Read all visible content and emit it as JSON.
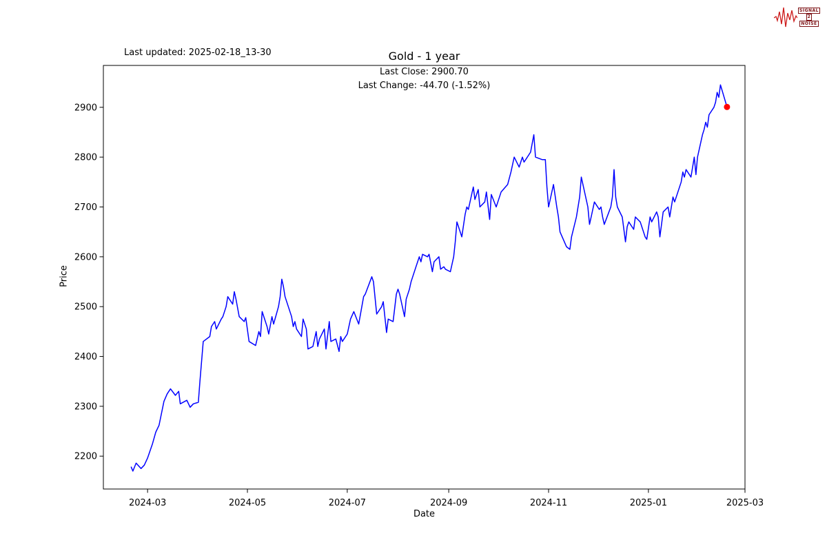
{
  "header": {
    "last_updated": "Last updated: 2025-02-18_13-30"
  },
  "logo": {
    "line1": "SIGNAL",
    "line2": "2",
    "line3": "NOISE",
    "waveform_color": "#cc1a1a",
    "text_color": "#7b0f12"
  },
  "chart_data": {
    "type": "line",
    "title": "Gold - 1 year",
    "annotations": [
      "Last Close: 2900.70",
      "Last Change: -44.70 (-1.52%)"
    ],
    "stats": {
      "last_close": 2900.7,
      "last_change": -44.7,
      "last_change_pct": "-1.52%"
    },
    "xlabel": "Date",
    "ylabel": "Price",
    "grid": false,
    "legend": "none",
    "xlim": [
      "2024-02-03",
      "2025-03-01"
    ],
    "ylim": [
      2134,
      2984
    ],
    "x_ticks": [
      {
        "label": "2024-03",
        "date": "2024-03-01"
      },
      {
        "label": "2024-05",
        "date": "2024-05-01"
      },
      {
        "label": "2024-07",
        "date": "2024-07-01"
      },
      {
        "label": "2024-09",
        "date": "2024-09-01"
      },
      {
        "label": "2024-11",
        "date": "2024-11-01"
      },
      {
        "label": "2025-01",
        "date": "2025-01-01"
      },
      {
        "label": "2025-03",
        "date": "2025-03-01"
      }
    ],
    "y_ticks": [
      2200,
      2300,
      2400,
      2500,
      2600,
      2700,
      2800,
      2900
    ],
    "series": [
      {
        "name": "Gold price",
        "color": "#0000ff",
        "line_width": 1.5,
        "points": [
          [
            "2024-02-20",
            2178
          ],
          [
            "2024-02-21",
            2170
          ],
          [
            "2024-02-23",
            2186
          ],
          [
            "2024-02-26",
            2175
          ],
          [
            "2024-02-28",
            2182
          ],
          [
            "2024-03-01",
            2196
          ],
          [
            "2024-03-04",
            2225
          ],
          [
            "2024-03-06",
            2248
          ],
          [
            "2024-03-08",
            2262
          ],
          [
            "2024-03-11",
            2310
          ],
          [
            "2024-03-13",
            2325
          ],
          [
            "2024-03-15",
            2335
          ],
          [
            "2024-03-18",
            2322
          ],
          [
            "2024-03-20",
            2330
          ],
          [
            "2024-03-21",
            2305
          ],
          [
            "2024-03-25",
            2312
          ],
          [
            "2024-03-27",
            2298
          ],
          [
            "2024-03-29",
            2305
          ],
          [
            "2024-04-01",
            2308
          ],
          [
            "2024-04-02",
            2350
          ],
          [
            "2024-04-04",
            2430
          ],
          [
            "2024-04-08",
            2440
          ],
          [
            "2024-04-09",
            2460
          ],
          [
            "2024-04-11",
            2470
          ],
          [
            "2024-04-12",
            2455
          ],
          [
            "2024-04-15",
            2475
          ],
          [
            "2024-04-16",
            2480
          ],
          [
            "2024-04-18",
            2500
          ],
          [
            "2024-04-19",
            2520
          ],
          [
            "2024-04-22",
            2505
          ],
          [
            "2024-04-23",
            2530
          ],
          [
            "2024-04-24",
            2515
          ],
          [
            "2024-04-26",
            2480
          ],
          [
            "2024-04-29",
            2470
          ],
          [
            "2024-04-30",
            2478
          ],
          [
            "2024-05-02",
            2430
          ],
          [
            "2024-05-06",
            2422
          ],
          [
            "2024-05-08",
            2450
          ],
          [
            "2024-05-09",
            2440
          ],
          [
            "2024-05-10",
            2490
          ],
          [
            "2024-05-13",
            2460
          ],
          [
            "2024-05-14",
            2445
          ],
          [
            "2024-05-16",
            2480
          ],
          [
            "2024-05-17",
            2465
          ],
          [
            "2024-05-20",
            2500
          ],
          [
            "2024-05-21",
            2520
          ],
          [
            "2024-05-22",
            2555
          ],
          [
            "2024-05-23",
            2540
          ],
          [
            "2024-05-24",
            2520
          ],
          [
            "2024-05-28",
            2480
          ],
          [
            "2024-05-29",
            2460
          ],
          [
            "2024-05-30",
            2470
          ],
          [
            "2024-05-31",
            2455
          ],
          [
            "2024-06-03",
            2440
          ],
          [
            "2024-06-04",
            2475
          ],
          [
            "2024-06-06",
            2455
          ],
          [
            "2024-06-07",
            2415
          ],
          [
            "2024-06-10",
            2420
          ],
          [
            "2024-06-12",
            2450
          ],
          [
            "2024-06-13",
            2420
          ],
          [
            "2024-06-14",
            2435
          ],
          [
            "2024-06-17",
            2455
          ],
          [
            "2024-06-18",
            2415
          ],
          [
            "2024-06-20",
            2470
          ],
          [
            "2024-06-21",
            2430
          ],
          [
            "2024-06-24",
            2435
          ],
          [
            "2024-06-26",
            2410
          ],
          [
            "2024-06-27",
            2440
          ],
          [
            "2024-06-28",
            2430
          ],
          [
            "2024-07-01",
            2445
          ],
          [
            "2024-07-03",
            2475
          ],
          [
            "2024-07-05",
            2490
          ],
          [
            "2024-07-08",
            2465
          ],
          [
            "2024-07-11",
            2520
          ],
          [
            "2024-07-12",
            2525
          ],
          [
            "2024-07-16",
            2560
          ],
          [
            "2024-07-17",
            2550
          ],
          [
            "2024-07-19",
            2485
          ],
          [
            "2024-07-22",
            2500
          ],
          [
            "2024-07-23",
            2510
          ],
          [
            "2024-07-25",
            2448
          ],
          [
            "2024-07-26",
            2475
          ],
          [
            "2024-07-29",
            2470
          ],
          [
            "2024-07-31",
            2525
          ],
          [
            "2024-08-01",
            2535
          ],
          [
            "2024-08-02",
            2525
          ],
          [
            "2024-08-05",
            2480
          ],
          [
            "2024-08-06",
            2515
          ],
          [
            "2024-08-08",
            2535
          ],
          [
            "2024-08-09",
            2550
          ],
          [
            "2024-08-12",
            2580
          ],
          [
            "2024-08-13",
            2590
          ],
          [
            "2024-08-14",
            2600
          ],
          [
            "2024-08-15",
            2590
          ],
          [
            "2024-08-16",
            2605
          ],
          [
            "2024-08-19",
            2600
          ],
          [
            "2024-08-20",
            2605
          ],
          [
            "2024-08-22",
            2570
          ],
          [
            "2024-08-23",
            2590
          ],
          [
            "2024-08-26",
            2600
          ],
          [
            "2024-08-27",
            2575
          ],
          [
            "2024-08-29",
            2580
          ],
          [
            "2024-08-30",
            2575
          ],
          [
            "2024-09-02",
            2570
          ],
          [
            "2024-09-04",
            2600
          ],
          [
            "2024-09-05",
            2630
          ],
          [
            "2024-09-06",
            2670
          ],
          [
            "2024-09-09",
            2640
          ],
          [
            "2024-09-11",
            2685
          ],
          [
            "2024-09-12",
            2700
          ],
          [
            "2024-09-13",
            2695
          ],
          [
            "2024-09-16",
            2740
          ],
          [
            "2024-09-17",
            2715
          ],
          [
            "2024-09-19",
            2735
          ],
          [
            "2024-09-20",
            2700
          ],
          [
            "2024-09-23",
            2710
          ],
          [
            "2024-09-24",
            2730
          ],
          [
            "2024-09-26",
            2675
          ],
          [
            "2024-09-27",
            2725
          ],
          [
            "2024-09-30",
            2700
          ],
          [
            "2024-10-01",
            2710
          ],
          [
            "2024-10-03",
            2730
          ],
          [
            "2024-10-07",
            2745
          ],
          [
            "2024-10-09",
            2770
          ],
          [
            "2024-10-11",
            2800
          ],
          [
            "2024-10-14",
            2780
          ],
          [
            "2024-10-16",
            2800
          ],
          [
            "2024-10-17",
            2790
          ],
          [
            "2024-10-21",
            2810
          ],
          [
            "2024-10-23",
            2845
          ],
          [
            "2024-10-24",
            2800
          ],
          [
            "2024-10-28",
            2795
          ],
          [
            "2024-10-30",
            2795
          ],
          [
            "2024-10-31",
            2740
          ],
          [
            "2024-11-01",
            2700
          ],
          [
            "2024-11-04",
            2745
          ],
          [
            "2024-11-06",
            2700
          ],
          [
            "2024-11-07",
            2680
          ],
          [
            "2024-11-08",
            2650
          ],
          [
            "2024-11-12",
            2620
          ],
          [
            "2024-11-14",
            2615
          ],
          [
            "2024-11-15",
            2640
          ],
          [
            "2024-11-18",
            2680
          ],
          [
            "2024-11-20",
            2720
          ],
          [
            "2024-11-21",
            2760
          ],
          [
            "2024-11-25",
            2700
          ],
          [
            "2024-11-26",
            2665
          ],
          [
            "2024-11-27",
            2680
          ],
          [
            "2024-11-29",
            2710
          ],
          [
            "2024-12-02",
            2695
          ],
          [
            "2024-12-03",
            2700
          ],
          [
            "2024-12-04",
            2680
          ],
          [
            "2024-12-05",
            2665
          ],
          [
            "2024-12-09",
            2700
          ],
          [
            "2024-12-10",
            2720
          ],
          [
            "2024-12-11",
            2775
          ],
          [
            "2024-12-12",
            2720
          ],
          [
            "2024-12-13",
            2700
          ],
          [
            "2024-12-16",
            2680
          ],
          [
            "2024-12-18",
            2630
          ],
          [
            "2024-12-19",
            2660
          ],
          [
            "2024-12-20",
            2670
          ],
          [
            "2024-12-23",
            2655
          ],
          [
            "2024-12-24",
            2680
          ],
          [
            "2024-12-27",
            2670
          ],
          [
            "2024-12-30",
            2640
          ],
          [
            "2024-12-31",
            2635
          ],
          [
            "2025-01-02",
            2680
          ],
          [
            "2025-01-03",
            2670
          ],
          [
            "2025-01-06",
            2690
          ],
          [
            "2025-01-07",
            2680
          ],
          [
            "2025-01-08",
            2640
          ],
          [
            "2025-01-10",
            2690
          ],
          [
            "2025-01-13",
            2700
          ],
          [
            "2025-01-14",
            2680
          ],
          [
            "2025-01-16",
            2720
          ],
          [
            "2025-01-17",
            2710
          ],
          [
            "2025-01-21",
            2750
          ],
          [
            "2025-01-22",
            2770
          ],
          [
            "2025-01-23",
            2760
          ],
          [
            "2025-01-24",
            2775
          ],
          [
            "2025-01-27",
            2760
          ],
          [
            "2025-01-29",
            2800
          ],
          [
            "2025-01-30",
            2765
          ],
          [
            "2025-01-31",
            2800
          ],
          [
            "2025-02-03",
            2845
          ],
          [
            "2025-02-04",
            2855
          ],
          [
            "2025-02-05",
            2870
          ],
          [
            "2025-02-06",
            2860
          ],
          [
            "2025-02-07",
            2885
          ],
          [
            "2025-02-10",
            2900
          ],
          [
            "2025-02-11",
            2910
          ],
          [
            "2025-02-12",
            2930
          ],
          [
            "2025-02-13",
            2920
          ],
          [
            "2025-02-14",
            2945
          ],
          [
            "2025-02-18",
            2900.7
          ]
        ]
      }
    ],
    "marker": {
      "date": "2025-02-18",
      "value": 2900.7,
      "color": "#ff0000",
      "radius": 4.5
    }
  }
}
